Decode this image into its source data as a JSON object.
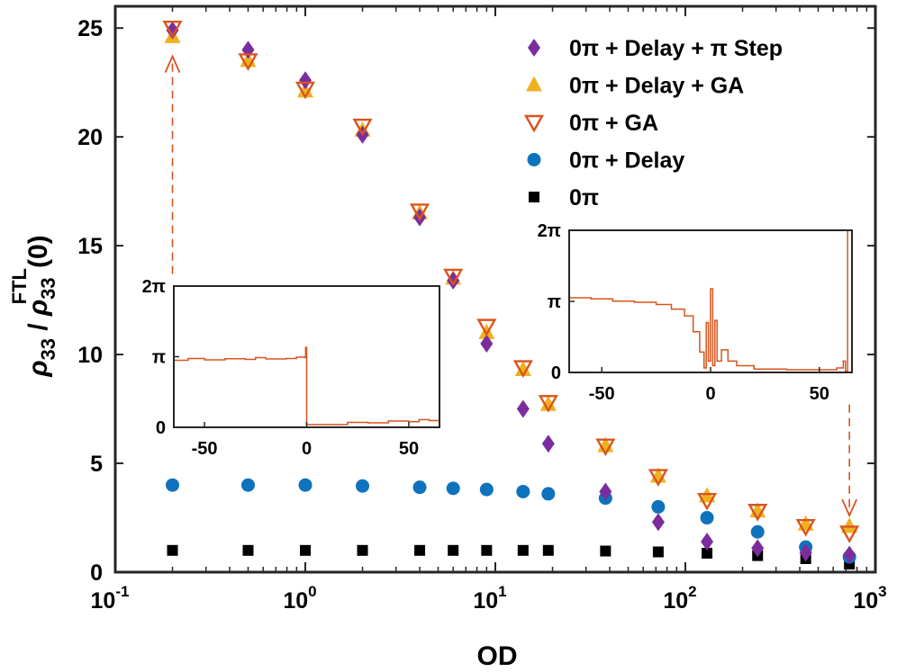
{
  "chart_data": {
    "type": "scatter",
    "xscale": "log",
    "xlim": [
      0.1,
      1000
    ],
    "ylim": [
      0,
      26
    ],
    "xlabel": "OD",
    "ylabel": {
      "rho": "ρ",
      "sub": "33",
      "slash": " / ",
      "sup": "FTL",
      "arg": "(0)"
    },
    "x_ticks": [
      {
        "base": "10",
        "exp": "-1",
        "value": 0.1
      },
      {
        "base": "10",
        "exp": "0",
        "value": 1
      },
      {
        "base": "10",
        "exp": "1",
        "value": 10
      },
      {
        "base": "10",
        "exp": "2",
        "value": 100
      },
      {
        "base": "10",
        "exp": "3",
        "value": 1000
      }
    ],
    "y_ticks": [
      "0",
      "5",
      "10",
      "15",
      "20",
      "25"
    ],
    "x": [
      0.2,
      0.5,
      1,
      2,
      4,
      6,
      9,
      14,
      19,
      38,
      72,
      130,
      240,
      430,
      730
    ],
    "series": [
      {
        "name": "0π + Delay + π Step",
        "marker": "diamond",
        "color": "#7b2d9e",
        "values": [
          24.9,
          24.0,
          22.6,
          20.1,
          16.3,
          13.4,
          10.5,
          7.5,
          5.9,
          3.7,
          2.3,
          1.4,
          1.1,
          0.9,
          0.8
        ]
      },
      {
        "name": "0π + Delay + GA",
        "marker": "triangle-up",
        "color": "#efb21f",
        "values": [
          24.6,
          23.5,
          22.1,
          20.3,
          16.5,
          13.5,
          11.0,
          9.3,
          7.7,
          5.8,
          4.4,
          3.5,
          2.8,
          2.2,
          2.1
        ]
      },
      {
        "name": "0π + GA",
        "marker": "triangle-down-open",
        "color": "#d9541c",
        "values": [
          25.0,
          23.5,
          22.2,
          20.5,
          16.6,
          13.6,
          11.3,
          9.4,
          7.8,
          5.8,
          4.4,
          3.3,
          2.8,
          2.1,
          1.8
        ]
      },
      {
        "name": "0π + Delay",
        "marker": "circle",
        "color": "#0f72bd",
        "values": [
          4.0,
          4.0,
          4.0,
          3.96,
          3.9,
          3.85,
          3.8,
          3.7,
          3.6,
          3.4,
          3.0,
          2.5,
          1.85,
          1.15,
          0.7
        ]
      },
      {
        "name": "0π",
        "marker": "square",
        "color": "#000000",
        "values": [
          1.0,
          1.0,
          1.0,
          1.0,
          1.0,
          1.0,
          1.0,
          1.0,
          1.0,
          0.97,
          0.93,
          0.87,
          0.76,
          0.62,
          0.37
        ]
      }
    ],
    "legend_position": "top-right",
    "insets": [
      {
        "name": "left-inset",
        "xlim": [
          -65,
          65
        ],
        "ylim": [
          0,
          6.2832
        ],
        "x_ticks": [
          "-50",
          "0",
          "50"
        ],
        "x_tick_values": [
          -50,
          0,
          50
        ],
        "y_ticks": [
          "0",
          "π",
          "2π"
        ],
        "y_tick_values": [
          0,
          3.1416,
          6.2832
        ],
        "color": "#d9541c",
        "points": [
          [
            -65,
            2.98
          ],
          [
            -60,
            2.98
          ],
          [
            -58,
            3.06
          ],
          [
            -50,
            3.0
          ],
          [
            -40,
            3.05
          ],
          [
            -30,
            3.02
          ],
          [
            -25,
            3.1
          ],
          [
            -20,
            3.04
          ],
          [
            -10,
            3.06
          ],
          [
            -5,
            3.12
          ],
          [
            -1,
            3.1
          ],
          [
            -0.5,
            3.55
          ],
          [
            0,
            3.55
          ],
          [
            0,
            0.12
          ],
          [
            10,
            0.12
          ],
          [
            20,
            0.22
          ],
          [
            30,
            0.2
          ],
          [
            40,
            0.28
          ],
          [
            50,
            0.25
          ],
          [
            55,
            0.34
          ],
          [
            60,
            0.3
          ],
          [
            65,
            0.3
          ]
        ]
      },
      {
        "name": "right-inset",
        "xlim": [
          -65,
          65
        ],
        "ylim": [
          0,
          6.2832
        ],
        "x_ticks": [
          "-50",
          "0",
          "50"
        ],
        "x_tick_values": [
          -50,
          0,
          50
        ],
        "y_ticks": [
          "0",
          "π",
          "2π"
        ],
        "y_tick_values": [
          0,
          3.1416,
          6.2832
        ],
        "color": "#d9541c",
        "points": [
          [
            -65,
            3.3
          ],
          [
            -55,
            3.25
          ],
          [
            -45,
            3.15
          ],
          [
            -35,
            3.1
          ],
          [
            -25,
            3.0
          ],
          [
            -18,
            2.8
          ],
          [
            -12,
            2.5
          ],
          [
            -8,
            1.8
          ],
          [
            -5,
            0.9
          ],
          [
            -3,
            0.2
          ],
          [
            -2,
            2.2
          ],
          [
            -1,
            0.5
          ],
          [
            0,
            3.7
          ],
          [
            1,
            0.3
          ],
          [
            2,
            2.3
          ],
          [
            3,
            0.5
          ],
          [
            5,
            1.0
          ],
          [
            8,
            0.5
          ],
          [
            12,
            0.3
          ],
          [
            20,
            0.15
          ],
          [
            35,
            0.12
          ],
          [
            50,
            0.12
          ],
          [
            58,
            0.2
          ],
          [
            61,
            0.5
          ],
          [
            62,
            0.05
          ],
          [
            63,
            6.2832
          ]
        ]
      }
    ],
    "annotations": [
      {
        "name": "arrow-up-left",
        "from": [
          0.2,
          13.7
        ],
        "to": [
          0.2,
          23.7
        ],
        "color": "#d9541c",
        "style": "dashed"
      },
      {
        "name": "arrow-down-right",
        "from": [
          730,
          7.7
        ],
        "to": [
          730,
          2.6
        ],
        "color": "#d9541c",
        "style": "dashed"
      }
    ]
  }
}
